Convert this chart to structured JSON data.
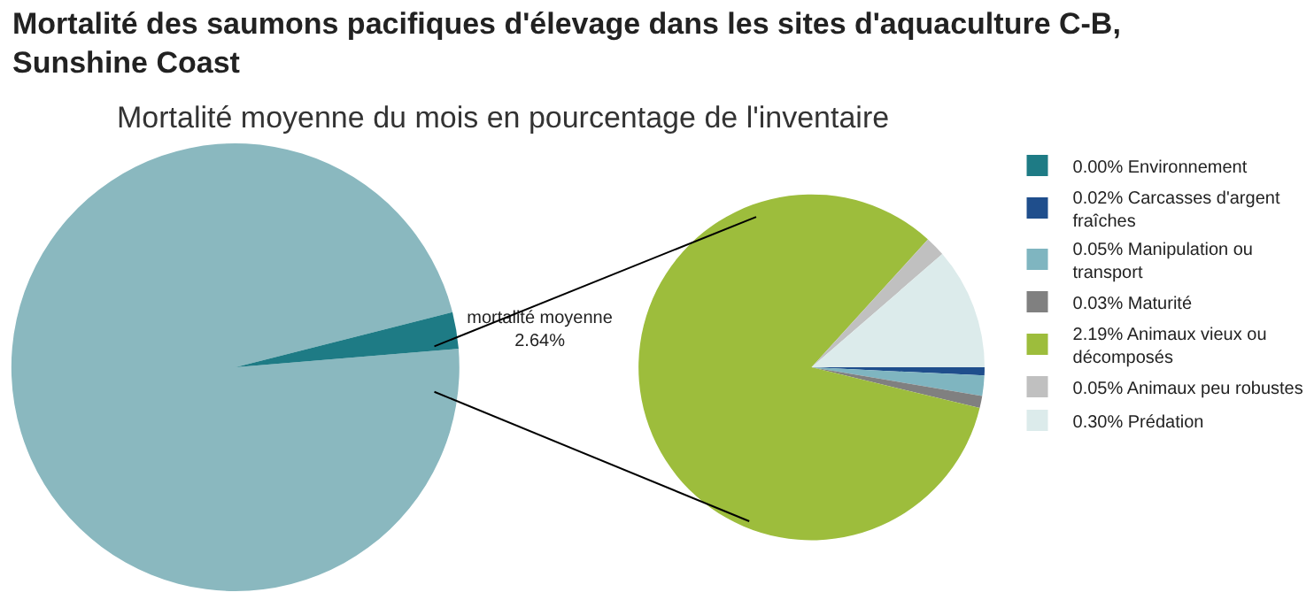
{
  "chart_data": [
    {
      "type": "pie",
      "title": "Mortalité des saumons pacifiques d'élevage dans les sites d'aquaculture C-B, Sunshine Coast",
      "subtitle": "Mortalité moyenne du mois en pourcentage de l'inventaire",
      "categories": [
        null,
        "mortalité moyenne"
      ],
      "values": [
        97.36,
        2.64
      ],
      "colors": [
        "#8ab8bf",
        "#1e7b85"
      ],
      "value_labels": [
        null,
        "2.64%"
      ],
      "legend": false
    },
    {
      "type": "pie",
      "categories": [
        "Environnement",
        "Carcasses d'argent fraîches",
        "Manipulation ou transport",
        "Maturité",
        "Animaux vieux ou décomposés",
        "Animaux peu robustes",
        "Prédation"
      ],
      "values": [
        0.0,
        0.02,
        0.05,
        0.03,
        2.19,
        0.05,
        0.3
      ],
      "colors": [
        "#1e7b85",
        "#1f4e8c",
        "#7fb5c0",
        "#808080",
        "#9dbd3c",
        "#c0c0c0",
        "#dcebeb"
      ],
      "value_labels": [
        "0.00%",
        "0.02%",
        "0.05%",
        "0.03%",
        "2.19%",
        "0.05%",
        "0.30%"
      ],
      "legend": "right"
    }
  ]
}
